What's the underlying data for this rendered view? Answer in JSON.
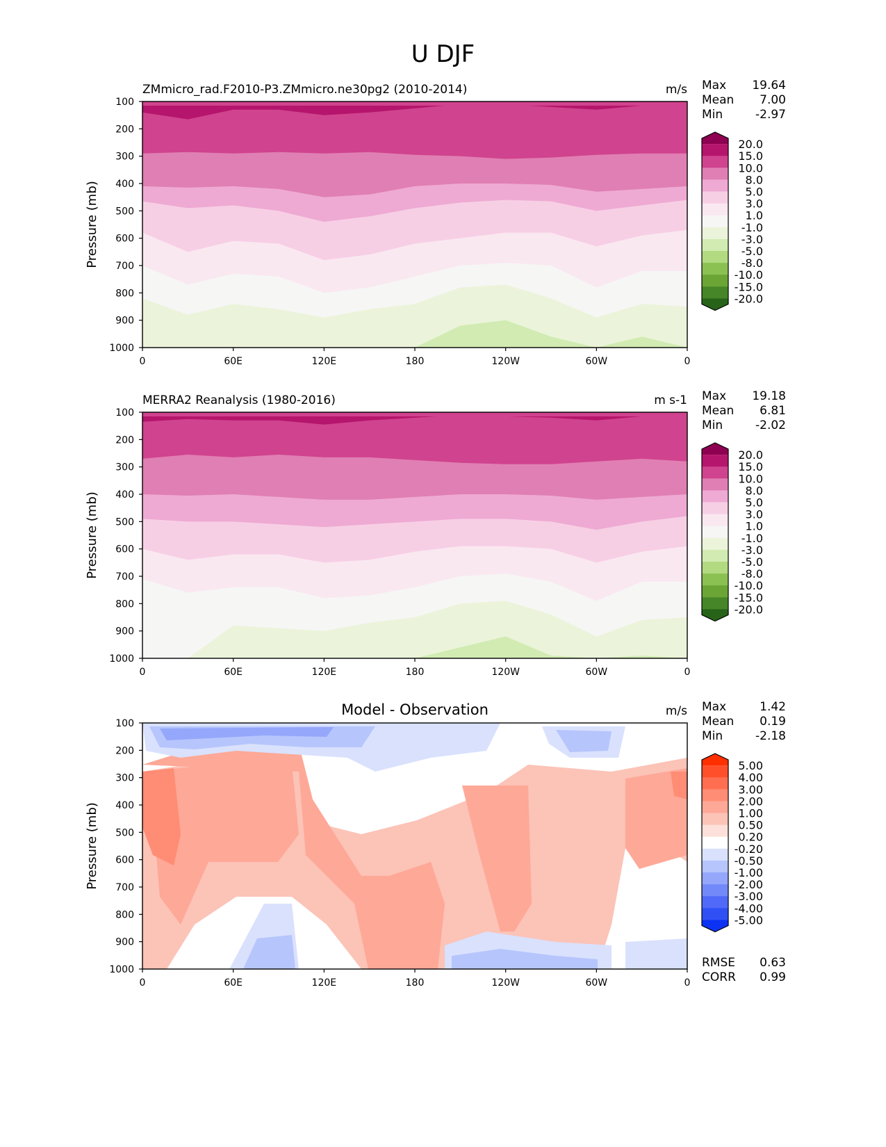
{
  "suptitle": "U DJF",
  "colors": {
    "pink_green": [
      "#8e0152",
      "#b5156c",
      "#d0438e",
      "#e07fb3",
      "#eeaad3",
      "#f7cfe5",
      "#fae8f1",
      "#f6f6f5",
      "#ebf4da",
      "#d1ebb2",
      "#b2da80",
      "#8bc153",
      "#6aa536",
      "#468628",
      "#276419"
    ],
    "diff": [
      "#ff2f00",
      "#ff4f2a",
      "#ff6e50",
      "#ff8c74",
      "#fea897",
      "#fcc3b7",
      "#fde0d9",
      "#ffffff",
      "#d9e1fd",
      "#b6c5fc",
      "#94a7fb",
      "#7289f9",
      "#5169f8",
      "#3050f6",
      "#0c32f4"
    ]
  },
  "chart_data": [
    {
      "type": "heatmap",
      "panel": "test",
      "title_left": "ZMmicro_rad.F2010-P3.ZMmicro.ne30pg2 (2010-2014)",
      "title_right": "m/s",
      "xlabel": "",
      "ylabel": "Pressure (mb)",
      "xticks": [
        "0",
        "60E",
        "120E",
        "180",
        "120W",
        "60W",
        "0"
      ],
      "yticks": [
        "100",
        "200",
        "300",
        "400",
        "500",
        "600",
        "700",
        "800",
        "900",
        "1000"
      ],
      "ylim": [
        1000,
        100
      ],
      "stats": [
        {
          "label": "Max",
          "value": "19.64"
        },
        {
          "label": "Mean",
          "value": "7.00"
        },
        {
          "label": "Min",
          "value": "-2.97"
        }
      ],
      "colorbar_levels": [
        "20.0",
        "15.0",
        "10.0",
        "8.0",
        "5.0",
        "3.0",
        "1.0",
        "-1.0",
        "-3.0",
        "-5.0",
        "-8.0",
        "-10.0",
        "-15.0",
        "-20.0"
      ],
      "colormap": "pink_green",
      "band_bottom_pressures_by_lon": {
        "lon": [
          0,
          30,
          60,
          90,
          120,
          150,
          180,
          210,
          240,
          270,
          300,
          330,
          360
        ],
        "ge15": [
          140,
          165,
          130,
          130,
          150,
          140,
          125,
          110,
          110,
          120,
          130,
          115,
          115
        ],
        "ge10": [
          290,
          285,
          290,
          285,
          290,
          285,
          295,
          300,
          310,
          305,
          295,
          290,
          290
        ],
        "ge8": [
          410,
          415,
          410,
          420,
          450,
          440,
          410,
          400,
          400,
          405,
          430,
          420,
          410
        ],
        "ge5": [
          465,
          490,
          480,
          500,
          540,
          520,
          490,
          470,
          460,
          465,
          500,
          480,
          460
        ],
        "ge3": [
          580,
          650,
          610,
          620,
          680,
          660,
          620,
          600,
          580,
          580,
          630,
          590,
          570
        ],
        "ge1": [
          700,
          770,
          730,
          740,
          800,
          780,
          740,
          700,
          690,
          700,
          780,
          720,
          720
        ],
        "ge_m1": [
          820,
          880,
          840,
          860,
          890,
          860,
          840,
          780,
          770,
          820,
          890,
          840,
          850
        ],
        "ge_m3": [
          1000,
          1000,
          1000,
          1000,
          1000,
          1000,
          1000,
          920,
          900,
          960,
          1000,
          960,
          1000
        ]
      }
    },
    {
      "type": "heatmap",
      "panel": "reference",
      "title_left": "MERRA2 Reanalysis (1980-2016)",
      "title_right": "m s-1",
      "xlabel": "",
      "ylabel": "Pressure (mb)",
      "xticks": [
        "0",
        "60E",
        "120E",
        "180",
        "120W",
        "60W",
        "0"
      ],
      "yticks": [
        "100",
        "200",
        "300",
        "400",
        "500",
        "600",
        "700",
        "800",
        "900",
        "1000"
      ],
      "ylim": [
        1000,
        100
      ],
      "stats": [
        {
          "label": "Max",
          "value": "19.18"
        },
        {
          "label": "Mean",
          "value": "6.81"
        },
        {
          "label": "Min",
          "value": "-2.02"
        }
      ],
      "colorbar_levels": [
        "20.0",
        "15.0",
        "10.0",
        "8.0",
        "5.0",
        "3.0",
        "1.0",
        "-1.0",
        "-3.0",
        "-5.0",
        "-8.0",
        "-10.0",
        "-15.0",
        "-20.0"
      ],
      "colormap": "pink_green",
      "band_bottom_pressures_by_lon": {
        "lon": [
          0,
          30,
          60,
          90,
          120,
          150,
          180,
          210,
          240,
          270,
          300,
          330,
          360
        ],
        "ge15": [
          135,
          125,
          130,
          130,
          145,
          130,
          120,
          110,
          115,
          120,
          130,
          115,
          115
        ],
        "ge10": [
          270,
          255,
          265,
          255,
          265,
          265,
          275,
          285,
          290,
          290,
          280,
          270,
          280
        ],
        "ge8": [
          400,
          405,
          400,
          410,
          420,
          420,
          410,
          400,
          400,
          405,
          420,
          410,
          400
        ],
        "ge5": [
          490,
          500,
          500,
          510,
          520,
          510,
          500,
          490,
          490,
          500,
          530,
          500,
          480
        ],
        "ge3": [
          600,
          640,
          620,
          620,
          650,
          640,
          610,
          590,
          590,
          600,
          650,
          610,
          590
        ],
        "ge1": [
          710,
          760,
          740,
          740,
          780,
          770,
          740,
          700,
          690,
          720,
          790,
          720,
          720
        ],
        "ge_m1": [
          1000,
          1000,
          880,
          890,
          900,
          870,
          850,
          800,
          790,
          840,
          920,
          860,
          850
        ],
        "ge_m3": [
          1000,
          1000,
          1000,
          1000,
          1000,
          1000,
          1000,
          960,
          920,
          990,
          1000,
          990,
          1000
        ]
      }
    },
    {
      "type": "heatmap",
      "panel": "difference",
      "title_center": "Model - Observation",
      "title_right": "m/s",
      "xlabel": "",
      "ylabel": "Pressure (mb)",
      "xticks": [
        "0",
        "60E",
        "120E",
        "180",
        "120W",
        "60W",
        "0"
      ],
      "yticks": [
        "100",
        "200",
        "300",
        "400",
        "500",
        "600",
        "700",
        "800",
        "900",
        "1000"
      ],
      "ylim": [
        1000,
        100
      ],
      "stats": [
        {
          "label": "Max",
          "value": "1.42"
        },
        {
          "label": "Mean",
          "value": "0.19"
        },
        {
          "label": "Min",
          "value": "-2.18"
        }
      ],
      "extra_stats": [
        {
          "label": "RMSE",
          "value": "0.63"
        },
        {
          "label": "CORR",
          "value": "0.99"
        }
      ],
      "colorbar_levels": [
        "5.00",
        "4.00",
        "3.00",
        "2.00",
        "1.00",
        "0.50",
        "0.20",
        "-0.20",
        "-0.50",
        "-1.00",
        "-2.00",
        "-3.00",
        "-4.00",
        "-5.00"
      ],
      "colormap": "diff"
    }
  ]
}
